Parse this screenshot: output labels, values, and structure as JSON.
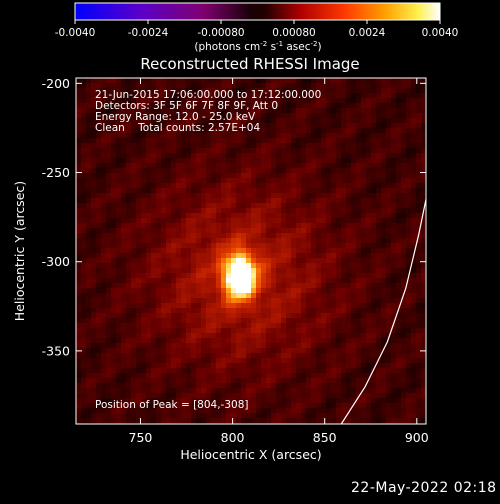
{
  "colorbar": {
    "ticks": [
      "-0.0040",
      "-0.0024",
      "-0.00080",
      "0.00080",
      "0.0024",
      "0.0040"
    ],
    "min": -0.004,
    "max": 0.004,
    "unit_parts": [
      "(photons cm",
      "-2",
      " s",
      "-1",
      " asec",
      "-2",
      ")"
    ]
  },
  "chart_data": {
    "type": "heatmap",
    "title": "Reconstructed RHESSI Image",
    "xlabel": "Heliocentric X (arcsec)",
    "ylabel": "Heliocentric Y (arcsec)",
    "xlim": [
      715,
      905
    ],
    "ylim": [
      -391,
      -197
    ],
    "x_ticks": [
      "750",
      "800",
      "850",
      "900"
    ],
    "x_tick_values": [
      750,
      800,
      850,
      900
    ],
    "y_ticks": [
      "-200",
      "-250",
      "-300",
      "-350"
    ],
    "y_tick_values": [
      -200,
      -250,
      -300,
      -350
    ],
    "info_lines": [
      "21-Jun-2015 17:06:00.000 to 17:12:00.000",
      "Detectors: 3F 5F 6F 7F 8F 9F, Att 0",
      "Energy Range: 12.0 - 25.0 keV",
      "Clean    Total counts: 2.57E+04"
    ],
    "peak_label": "Position of Peak = [804,-308]",
    "peak": {
      "x": 804,
      "y": -308,
      "value": 0.004
    },
    "limb_curve": [
      [
        859,
        -391
      ],
      [
        872,
        -370
      ],
      [
        884,
        -345
      ],
      [
        894,
        -315
      ],
      [
        901,
        -285
      ],
      [
        905,
        -265
      ]
    ],
    "colormap": "heat (black-red-orange-yellow-white)"
  },
  "timestamp": "22-May-2022 02:18"
}
